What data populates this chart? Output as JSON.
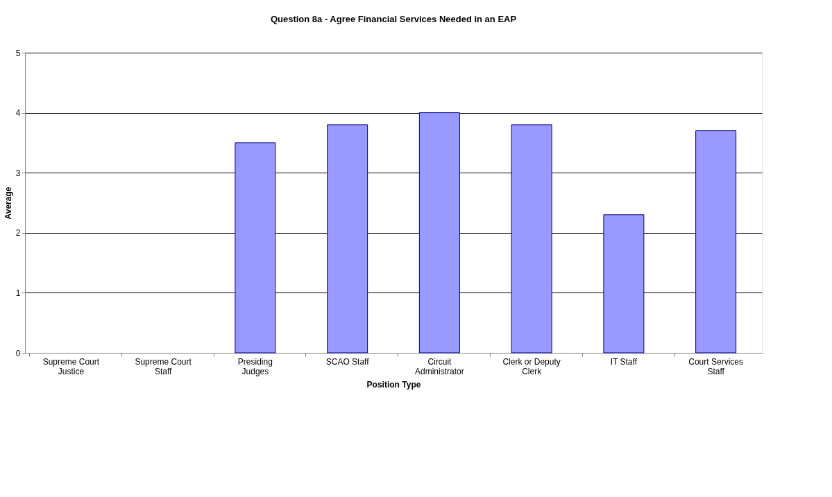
{
  "chart_data": {
    "type": "bar",
    "title": "Question 8a - Agree Financial Services Needed in an EAP",
    "xlabel": "Position Type",
    "ylabel": "Average",
    "categories": [
      "Supreme Court Justice",
      "Supreme Court Staff",
      "Presiding Judges",
      "SCAO Staff",
      "Circuit Administrator",
      "Clerk or Deputy Clerk",
      "IT Staff",
      "Court Services Staff"
    ],
    "values": [
      null,
      null,
      3.5,
      3.8,
      4.0,
      3.8,
      2.3,
      3.7
    ],
    "color": "#9999ff",
    "ylim": [
      0,
      5
    ],
    "yticks": [
      0,
      1,
      2,
      3,
      4,
      5
    ],
    "grid": "y"
  }
}
